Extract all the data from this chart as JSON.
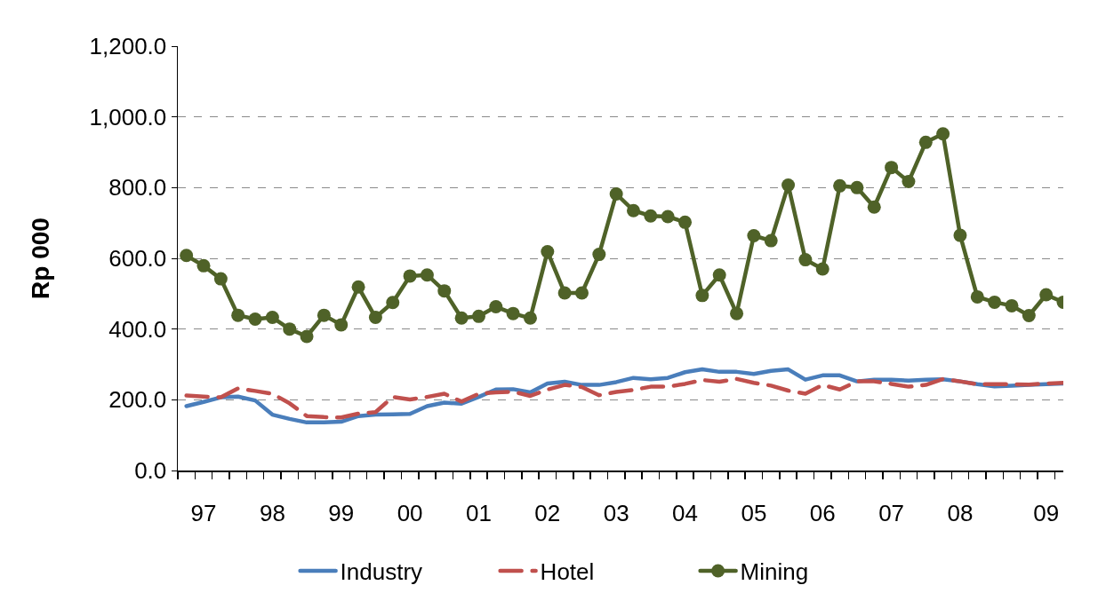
{
  "chart_data": {
    "type": "line",
    "ylabel": "Rp 000",
    "categories": [
      null,
      "97",
      null,
      null,
      null,
      "98",
      null,
      null,
      null,
      "99",
      null,
      null,
      null,
      "00",
      null,
      null,
      null,
      "01",
      null,
      null,
      null,
      "02",
      null,
      null,
      null,
      "03",
      null,
      null,
      null,
      "04",
      null,
      null,
      null,
      "05",
      null,
      null,
      null,
      "06",
      null,
      null,
      null,
      "07",
      null,
      null,
      null,
      "08",
      null,
      null,
      null,
      null,
      "09",
      null
    ],
    "series": [
      {
        "name": "Industry",
        "color": "#4a7ebb",
        "values": [
          182,
          194,
          207,
          209,
          198,
          158,
          146,
          136,
          136,
          138,
          154,
          158,
          159,
          160,
          182,
          192,
          189,
          208,
          229,
          230,
          221,
          246,
          251,
          242,
          242,
          250,
          262,
          258,
          262,
          278,
          286,
          279,
          279,
          273,
          282,
          286,
          257,
          269,
          269,
          252,
          257,
          257,
          254,
          257,
          258,
          252,
          244,
          238,
          240,
          242,
          244,
          246
        ]
      },
      {
        "name": "Hotel",
        "color": "#c0504d",
        "line_style": "dashed",
        "values": [
          212,
          209,
          207,
          232,
          225,
          217,
          190,
          154,
          151,
          150,
          161,
          165,
          208,
          201,
          208,
          217,
          195,
          217,
          221,
          223,
          211,
          229,
          242,
          236,
          213,
          222,
          228,
          237,
          237,
          245,
          256,
          251,
          259,
          248,
          240,
          226,
          217,
          242,
          229,
          252,
          252,
          245,
          237,
          242,
          259,
          252,
          244,
          244,
          244,
          243,
          246,
          248
        ]
      },
      {
        "name": "Mining",
        "color": "#4f6228",
        "marker": "circle",
        "values": [
          608,
          579,
          542,
          439,
          428,
          433,
          400,
          379,
          439,
          412,
          519,
          433,
          475,
          550,
          553,
          508,
          431,
          436,
          463,
          444,
          431,
          619,
          502,
          502,
          611,
          782,
          735,
          720,
          718,
          702,
          495,
          553,
          444,
          664,
          650,
          807,
          596,
          570,
          805,
          800,
          745,
          857,
          817,
          928,
          952,
          665,
          491,
          476,
          466,
          438,
          497,
          476
        ]
      }
    ],
    "ylim": [
      0,
      1200
    ],
    "yticks": [
      {
        "value": 0,
        "label": "0.0"
      },
      {
        "value": 200,
        "label": "200.0"
      },
      {
        "value": 400,
        "label": "400.0"
      },
      {
        "value": 600,
        "label": "600.0"
      },
      {
        "value": 800,
        "label": "800.0"
      },
      {
        "value": 1000,
        "label": "1,000.0"
      },
      {
        "value": 1200,
        "label": "1,200.0"
      }
    ],
    "grid": "y",
    "legend": "bottom",
    "marker": "none",
    "line_style": "solid"
  }
}
